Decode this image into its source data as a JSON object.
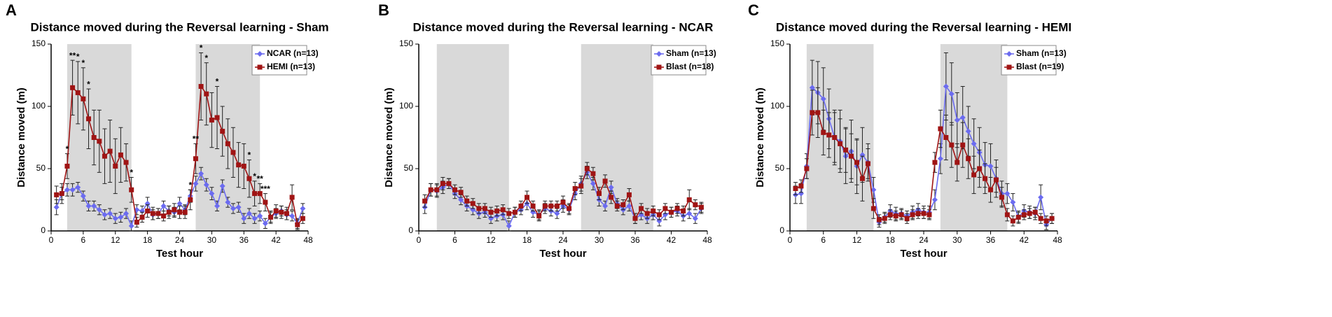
{
  "chart_data": [
    {
      "type": "line",
      "panel_label": "A",
      "title": "Distance moved during the Reversal learning - Sham",
      "x_label": "Test hour",
      "y_label": "Distance moved (m)",
      "xlim": [
        0,
        48
      ],
      "xticks": [
        0,
        6,
        12,
        18,
        24,
        30,
        36,
        42,
        48
      ],
      "ylim": [
        0,
        150
      ],
      "yticks": [
        0,
        50,
        100,
        150
      ],
      "shaded": [
        [
          3,
          15
        ],
        [
          27,
          39
        ]
      ],
      "x": [
        1,
        2,
        3,
        4,
        5,
        6,
        7,
        8,
        9,
        10,
        11,
        12,
        13,
        14,
        15,
        16,
        17,
        18,
        19,
        20,
        21,
        22,
        23,
        24,
        25,
        26,
        27,
        28,
        29,
        30,
        31,
        32,
        33,
        34,
        35,
        36,
        37,
        38,
        39,
        40,
        41,
        42,
        43,
        44,
        45,
        46,
        47
      ],
      "series": [
        {
          "name": "NCAR (n=13)",
          "color": "#6b6bf0",
          "values": [
            19,
            30,
            33,
            33,
            35,
            28,
            20,
            20,
            17,
            13,
            14,
            10,
            11,
            14,
            4,
            17,
            16,
            22,
            13,
            14,
            20,
            16,
            15,
            22,
            17,
            28,
            38,
            46,
            37,
            30,
            20,
            36,
            23,
            18,
            19,
            10,
            14,
            10,
            12,
            6,
            11,
            14,
            16,
            13,
            12,
            6,
            18
          ],
          "errors": [
            6,
            5,
            5,
            5,
            4,
            4,
            4,
            4,
            4,
            4,
            4,
            4,
            4,
            4,
            4,
            4,
            4,
            5,
            4,
            4,
            4,
            4,
            4,
            5,
            4,
            5,
            6,
            5,
            5,
            5,
            4,
            5,
            4,
            4,
            4,
            4,
            4,
            4,
            4,
            4,
            4,
            4,
            4,
            4,
            4,
            4,
            4
          ]
        },
        {
          "name": "HEMI (n=13)",
          "color": "#a01414",
          "values": [
            29,
            30,
            52,
            115,
            111,
            106,
            90,
            75,
            72,
            60,
            64,
            52,
            61,
            55,
            33,
            7,
            11,
            16,
            14,
            14,
            12,
            15,
            17,
            15,
            15,
            25,
            58,
            116,
            110,
            89,
            91,
            80,
            70,
            63,
            53,
            52,
            42,
            30,
            30,
            23,
            11,
            16,
            15,
            14,
            27,
            5,
            10
          ],
          "errors": [
            7,
            8,
            10,
            22,
            25,
            25,
            24,
            22,
            25,
            22,
            25,
            22,
            22,
            15,
            10,
            4,
            4,
            5,
            5,
            4,
            4,
            5,
            5,
            5,
            5,
            8,
            12,
            27,
            25,
            22,
            25,
            20,
            20,
            20,
            18,
            18,
            15,
            10,
            8,
            7,
            5,
            5,
            5,
            5,
            10,
            4,
            4
          ]
        }
      ],
      "annotations": [
        {
          "x": 3,
          "label": "*"
        },
        {
          "x": 4,
          "label": "**"
        },
        {
          "x": 5,
          "label": "*"
        },
        {
          "x": 6,
          "label": "*"
        },
        {
          "x": 7,
          "label": "*"
        },
        {
          "x": 15,
          "label": "*"
        },
        {
          "x": 26,
          "label": "*"
        },
        {
          "x": 27,
          "label": "**"
        },
        {
          "x": 28,
          "label": "*"
        },
        {
          "x": 29,
          "label": "*"
        },
        {
          "x": 31,
          "label": "*"
        },
        {
          "x": 37,
          "label": "*"
        },
        {
          "x": 38,
          "label": "*"
        },
        {
          "x": 39,
          "label": "**"
        },
        {
          "x": 40,
          "label": "***"
        }
      ]
    },
    {
      "type": "line",
      "panel_label": "B",
      "title": "Distance moved during the Reversal learning - NCAR",
      "x_label": "Test hour",
      "y_label": "Distance moved (m)",
      "xlim": [
        0,
        48
      ],
      "xticks": [
        0,
        6,
        12,
        18,
        24,
        30,
        36,
        42,
        48
      ],
      "ylim": [
        0,
        150
      ],
      "yticks": [
        0,
        50,
        100,
        150
      ],
      "shaded": [
        [
          3,
          15
        ],
        [
          27,
          39
        ]
      ],
      "x": [
        1,
        2,
        3,
        4,
        5,
        6,
        7,
        8,
        9,
        10,
        11,
        12,
        13,
        14,
        15,
        16,
        17,
        18,
        19,
        20,
        21,
        22,
        23,
        24,
        25,
        26,
        27,
        28,
        29,
        30,
        31,
        32,
        33,
        34,
        35,
        36,
        37,
        38,
        39,
        40,
        41,
        42,
        43,
        44,
        45,
        46,
        47
      ],
      "series": [
        {
          "name": "Sham (n=13)",
          "color": "#6b6bf0",
          "values": [
            19,
            33,
            32,
            35,
            38,
            30,
            25,
            20,
            17,
            14,
            15,
            10,
            12,
            13,
            4,
            15,
            17,
            22,
            15,
            13,
            18,
            16,
            14,
            20,
            17,
            30,
            38,
            47,
            38,
            25,
            20,
            35,
            22,
            17,
            20,
            10,
            13,
            10,
            13,
            8,
            13,
            15,
            16,
            12,
            14,
            10,
            18
          ],
          "errors": [
            5,
            5,
            5,
            5,
            4,
            4,
            4,
            4,
            4,
            4,
            4,
            4,
            4,
            4,
            4,
            4,
            4,
            5,
            4,
            4,
            4,
            4,
            4,
            5,
            4,
            5,
            6,
            5,
            5,
            5,
            4,
            5,
            4,
            4,
            4,
            4,
            4,
            4,
            4,
            4,
            4,
            4,
            4,
            4,
            4,
            4,
            4
          ]
        },
        {
          "name": "Blast (n=18)",
          "color": "#a01414",
          "values": [
            24,
            33,
            33,
            38,
            38,
            33,
            31,
            24,
            22,
            18,
            18,
            15,
            16,
            17,
            14,
            15,
            20,
            27,
            20,
            12,
            20,
            20,
            20,
            23,
            18,
            34,
            36,
            50,
            46,
            30,
            40,
            27,
            20,
            21,
            29,
            10,
            18,
            14,
            16,
            13,
            18,
            15,
            18,
            16,
            25,
            21,
            19
          ],
          "errors": [
            5,
            5,
            5,
            5,
            4,
            4,
            4,
            4,
            4,
            4,
            4,
            4,
            4,
            4,
            4,
            4,
            4,
            5,
            4,
            4,
            4,
            4,
            4,
            5,
            4,
            5,
            6,
            5,
            5,
            5,
            5,
            5,
            4,
            4,
            5,
            4,
            4,
            4,
            4,
            4,
            4,
            4,
            4,
            4,
            8,
            4,
            4
          ]
        }
      ]
    },
    {
      "type": "line",
      "panel_label": "C",
      "title": "Distance moved during the Reversal learning - HEMI",
      "x_label": "Test hour",
      "y_label": "Distance moved (m)",
      "xlim": [
        0,
        48
      ],
      "xticks": [
        0,
        6,
        12,
        18,
        24,
        30,
        36,
        42,
        48
      ],
      "ylim": [
        0,
        150
      ],
      "yticks": [
        0,
        50,
        100,
        150
      ],
      "shaded": [
        [
          3,
          15
        ],
        [
          27,
          39
        ]
      ],
      "x": [
        1,
        2,
        3,
        4,
        5,
        6,
        7,
        8,
        9,
        10,
        11,
        12,
        13,
        14,
        15,
        16,
        17,
        18,
        19,
        20,
        21,
        22,
        23,
        24,
        25,
        26,
        27,
        28,
        29,
        30,
        31,
        32,
        33,
        34,
        35,
        36,
        37,
        38,
        39,
        40,
        41,
        42,
        43,
        44,
        45,
        46,
        47
      ],
      "series": [
        {
          "name": "Sham (n=13)",
          "color": "#6b6bf0",
          "values": [
            29,
            30,
            52,
            115,
            111,
            106,
            90,
            75,
            72,
            60,
            64,
            52,
            61,
            55,
            33,
            7,
            11,
            16,
            14,
            14,
            12,
            15,
            17,
            15,
            15,
            25,
            58,
            116,
            110,
            89,
            91,
            80,
            70,
            63,
            53,
            52,
            42,
            30,
            30,
            23,
            11,
            16,
            15,
            14,
            27,
            5,
            10
          ],
          "errors": [
            7,
            8,
            10,
            22,
            25,
            25,
            24,
            22,
            25,
            22,
            25,
            22,
            22,
            15,
            10,
            4,
            4,
            5,
            5,
            4,
            4,
            5,
            5,
            5,
            5,
            8,
            12,
            27,
            25,
            22,
            25,
            20,
            20,
            20,
            18,
            18,
            15,
            10,
            8,
            7,
            5,
            5,
            5,
            5,
            10,
            4,
            4
          ]
        },
        {
          "name": "Blast (n=19)",
          "color": "#a01414",
          "values": [
            34,
            36,
            50,
            95,
            95,
            79,
            77,
            75,
            70,
            65,
            60,
            55,
            42,
            54,
            18,
            9,
            10,
            13,
            12,
            13,
            10,
            13,
            14,
            14,
            13,
            55,
            82,
            75,
            69,
            55,
            69,
            58,
            45,
            50,
            42,
            33,
            41,
            27,
            13,
            8,
            11,
            13,
            14,
            15,
            10,
            8,
            10
          ],
          "errors": [
            5,
            5,
            8,
            18,
            20,
            18,
            18,
            20,
            20,
            18,
            18,
            18,
            18,
            12,
            8,
            4,
            4,
            4,
            4,
            4,
            4,
            4,
            4,
            4,
            4,
            8,
            15,
            18,
            18,
            15,
            18,
            16,
            15,
            15,
            12,
            10,
            10,
            8,
            5,
            4,
            4,
            4,
            4,
            4,
            4,
            4,
            4
          ]
        }
      ]
    }
  ]
}
